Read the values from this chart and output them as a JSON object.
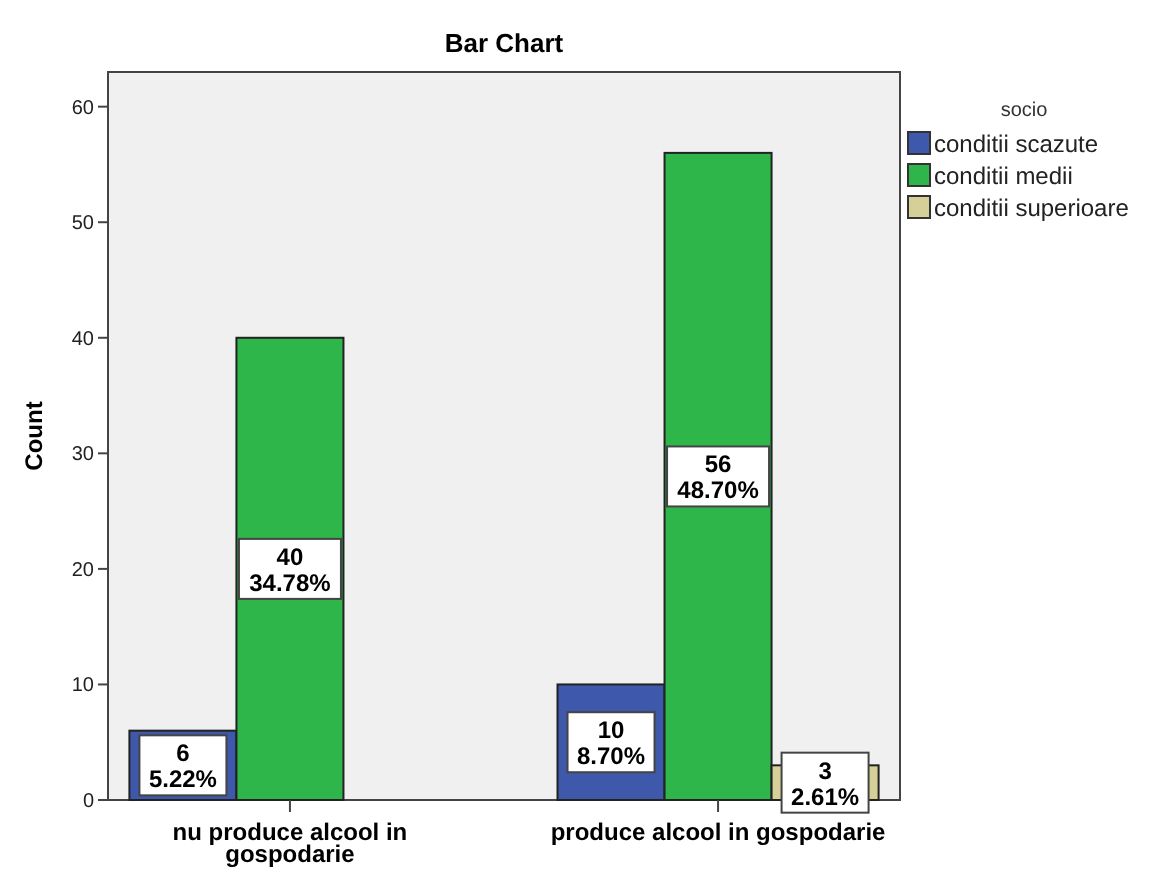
{
  "chart_data": {
    "type": "bar",
    "title": "Bar Chart",
    "ylabel": "Count",
    "legend_title": "socio",
    "categories": [
      "nu produce alcool in gospodarie",
      "produce alcool in gospodarie"
    ],
    "series": [
      {
        "name": "conditii scazute",
        "color": "#3e58ac",
        "values": [
          6,
          10
        ],
        "value_labels": [
          "6\n5.22%",
          "10\n8.70%"
        ]
      },
      {
        "name": "conditii medii",
        "color": "#2fb64a",
        "values": [
          40,
          56
        ],
        "value_labels": [
          "40\n34.78%",
          "56\n48.70%"
        ]
      },
      {
        "name": "conditii superioare",
        "color": "#d5cf98",
        "values": [
          null,
          3
        ],
        "value_labels": [
          null,
          "3\n2.61%"
        ]
      }
    ],
    "ylim": [
      0,
      63
    ],
    "yticks": [
      0,
      10,
      20,
      30,
      40,
      50,
      60
    ],
    "grid": false,
    "legend": "top right"
  }
}
